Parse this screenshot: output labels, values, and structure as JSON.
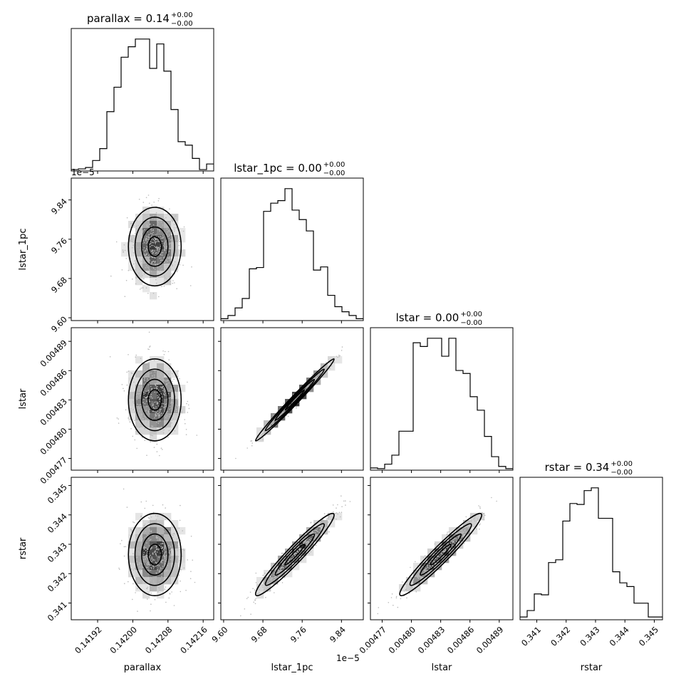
{
  "figure": {
    "kind": "corner-plot"
  },
  "chart_data": [
    {
      "type": "histogram",
      "panel": "parallax-1d",
      "title": "parallax = 0.14",
      "title_sup": "+0.00",
      "title_sub": "−0.00",
      "xlim": [
        0.14186,
        0.142184
      ],
      "bin_edges": [
        0.14186,
        0.1418762,
        0.1418924,
        0.1419086,
        0.1419248,
        0.141941,
        0.1419572,
        0.1419734,
        0.1419896,
        0.1420058,
        0.142022,
        0.1420382,
        0.1420544,
        0.1420706,
        0.1420868,
        0.142103,
        0.1421192,
        0.1421354,
        0.1421516,
        0.1421678,
        0.142184
      ],
      "counts": [
        2,
        3,
        5,
        15,
        32,
        85,
        120,
        163,
        178,
        189,
        189,
        147,
        182,
        143,
        88,
        42,
        37,
        18,
        2,
        10
      ]
    },
    {
      "type": "histogram",
      "panel": "lstar_1pc-1d",
      "title": "lstar_1pc = 0.00",
      "title_sup": "+0.00",
      "title_sub": "−0.00",
      "xlim": [
        9.5943,
        9.8845
      ],
      "scale_note": "1e−5",
      "bin_edges": [
        9.5943,
        9.60881,
        9.62332,
        9.63783,
        9.65234,
        9.66685,
        9.68136,
        9.69587,
        9.71038,
        9.72489,
        9.7394,
        9.75391,
        9.76842,
        9.78293,
        9.79744,
        9.81195,
        9.82646,
        9.84097,
        9.85548,
        9.86999,
        9.8845
      ],
      "counts": [
        3,
        8,
        20,
        35,
        82,
        84,
        173,
        186,
        190,
        209,
        175,
        160,
        142,
        80,
        85,
        40,
        22,
        14,
        8,
        3
      ]
    },
    {
      "type": "histogram",
      "panel": "lstar-1d",
      "title": "lstar = 0.00",
      "title_sup": "+0.00",
      "title_sub": "−0.00",
      "xlim": [
        0.004758,
        0.004904
      ],
      "bin_edges": [
        0.004758,
        0.0047653,
        0.0047726,
        0.0047799,
        0.0047872,
        0.0047945,
        0.0048018,
        0.0048091,
        0.0048164,
        0.0048237,
        0.004831,
        0.0048383,
        0.0048456,
        0.0048529,
        0.0048602,
        0.0048675,
        0.0048748,
        0.0048821,
        0.0048894,
        0.0048967,
        0.004904
      ],
      "counts": [
        3,
        2,
        8,
        20,
        52,
        52,
        170,
        165,
        176,
        176,
        152,
        176,
        133,
        129,
        98,
        80,
        45,
        18,
        5,
        2
      ]
    },
    {
      "type": "histogram",
      "panel": "rstar-1d",
      "title": "rstar = 0.34",
      "title_sup": "+0.00",
      "title_sub": "−0.00",
      "xlim": [
        0.34043,
        0.34528
      ],
      "bin_edges": [
        0.34043,
        0.3406725,
        0.340915,
        0.3411575,
        0.3414,
        0.3416425,
        0.341885,
        0.3421275,
        0.34237,
        0.3426125,
        0.342855,
        0.3430975,
        0.34334,
        0.3435825,
        0.343825,
        0.3440675,
        0.34431,
        0.3445525,
        0.344795,
        0.3450375,
        0.34528
      ],
      "counts": [
        3,
        10,
        28,
        27,
        62,
        65,
        107,
        126,
        125,
        140,
        143,
        110,
        110,
        52,
        40,
        36,
        18,
        18,
        3,
        3
      ]
    },
    {
      "type": "scatter-density",
      "panel": "lstar_1pc-vs-parallax",
      "xlim": [
        0.14186,
        0.142184
      ],
      "ylim": [
        9.5943,
        9.8845
      ],
      "y_scale_note": "1e−5",
      "center": [
        0.14205,
        9.745
      ],
      "sd": [
        3e-05,
        0.04
      ],
      "rho": 0.0
    },
    {
      "type": "scatter-density",
      "panel": "lstar-vs-parallax",
      "xlim": [
        0.14186,
        0.142184
      ],
      "ylim": [
        0.004758,
        0.004904
      ],
      "center": [
        0.14205,
        0.00483
      ],
      "sd": [
        3e-05,
        2.1e-05
      ],
      "rho": 0.0
    },
    {
      "type": "scatter-density",
      "panel": "lstar-vs-lstar_1pc",
      "xlim": [
        9.5943,
        9.8845
      ],
      "ylim": [
        0.004758,
        0.004904
      ],
      "center": [
        9.745,
        0.00483
      ],
      "sd": [
        0.04,
        2.1e-05
      ],
      "rho": 0.99
    },
    {
      "type": "scatter-density",
      "panel": "rstar-vs-parallax",
      "xlim": [
        0.14186,
        0.142184
      ],
      "ylim": [
        0.34043,
        0.34528
      ],
      "center": [
        0.14205,
        0.34265
      ],
      "sd": [
        3e-05,
        0.0007
      ],
      "rho": 0.0
    },
    {
      "type": "scatter-density",
      "panel": "rstar-vs-lstar_1pc",
      "xlim": [
        9.5943,
        9.8845
      ],
      "ylim": [
        0.34043,
        0.34528
      ],
      "center": [
        9.745,
        0.34265
      ],
      "sd": [
        0.04,
        0.0007
      ],
      "rho": 0.96
    },
    {
      "type": "scatter-density",
      "panel": "rstar-vs-lstar",
      "xlim": [
        0.004758,
        0.004904
      ],
      "ylim": [
        0.34043,
        0.34528
      ],
      "center": [
        0.00483,
        0.34265
      ],
      "sd": [
        2.1e-05,
        0.0007
      ],
      "rho": 0.96
    }
  ],
  "axes": {
    "x_labels": [
      "parallax",
      "lstar_1pc",
      "lstar",
      "rstar"
    ],
    "y_labels": [
      "lstar_1pc",
      "lstar",
      "rstar"
    ],
    "offset_texts": [
      "1e−5",
      "1e−5"
    ],
    "ticks": {
      "parallax": [
        "0.14192",
        "0.14200",
        "0.14208",
        "0.14216"
      ],
      "parallax_values": [
        0.14192,
        0.142,
        0.14208,
        0.14216
      ],
      "lstar_1pc": [
        "9.60",
        "9.68",
        "9.76",
        "9.84"
      ],
      "lstar_1pc_values": [
        9.6,
        9.68,
        9.76,
        9.84
      ],
      "lstar": [
        "0.00477",
        "0.00480",
        "0.00483",
        "0.00486",
        "0.00489"
      ],
      "lstar_values": [
        0.00477,
        0.0048,
        0.00483,
        0.00486,
        0.00489
      ],
      "rstar": [
        "0.341",
        "0.342",
        "0.343",
        "0.344",
        "0.345"
      ],
      "rstar_values": [
        0.341,
        0.342,
        0.343,
        0.344,
        0.345
      ]
    }
  }
}
